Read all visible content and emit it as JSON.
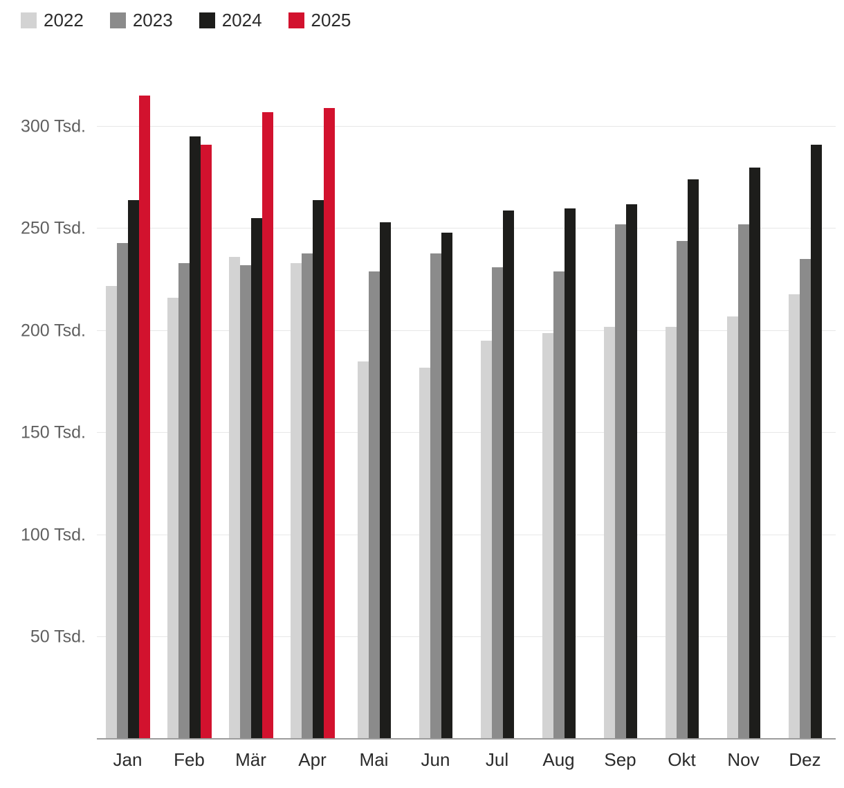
{
  "chart_data": {
    "type": "bar",
    "title": "",
    "categories": [
      "Jan",
      "Feb",
      "Mär",
      "Apr",
      "Mai",
      "Jun",
      "Jul",
      "Aug",
      "Sep",
      "Okt",
      "Nov",
      "Dez"
    ],
    "series": [
      {
        "name": "2022",
        "color": "#d3d3d3",
        "values": [
          222,
          216,
          236,
          233,
          185,
          182,
          195,
          199,
          202,
          202,
          207,
          218
        ]
      },
      {
        "name": "2023",
        "color": "#8b8b8b",
        "values": [
          243,
          233,
          232,
          238,
          229,
          238,
          231,
          229,
          252,
          244,
          252,
          235
        ]
      },
      {
        "name": "2024",
        "color": "#1d1d1b",
        "values": [
          264,
          295,
          255,
          264,
          253,
          248,
          259,
          260,
          262,
          274,
          280,
          291
        ]
      },
      {
        "name": "2025",
        "color": "#d2122e",
        "values": [
          315,
          291,
          307,
          309,
          null,
          null,
          null,
          null,
          null,
          null,
          null,
          null
        ]
      }
    ],
    "unit": "Tsd.",
    "yticks": [
      {
        "value": 50,
        "label": "50 Tsd."
      },
      {
        "value": 100,
        "label": "100 Tsd."
      },
      {
        "value": 150,
        "label": "150 Tsd."
      },
      {
        "value": 200,
        "label": "200 Tsd."
      },
      {
        "value": 250,
        "label": "250 Tsd."
      },
      {
        "value": 300,
        "label": "300 Tsd."
      }
    ],
    "ylim": [
      0,
      330
    ],
    "grid": true,
    "legend_position": "top-left",
    "xlabel": "",
    "ylabel": ""
  }
}
